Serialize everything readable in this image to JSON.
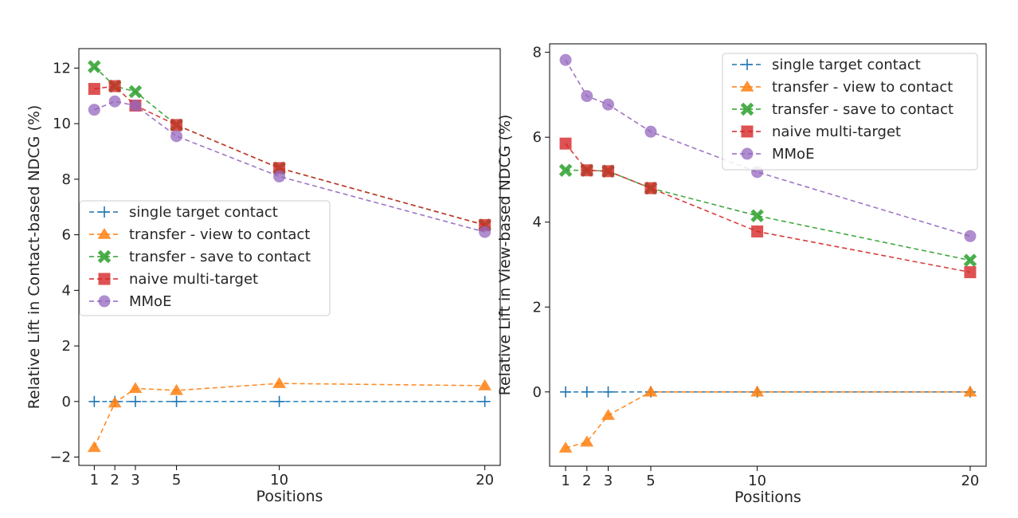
{
  "chart_data": [
    {
      "type": "line",
      "xlabel": "Positions",
      "ylabel": "Relative Lift in Contact-based NDCG (%)",
      "x": [
        1,
        2,
        3,
        5,
        10,
        20
      ],
      "xticks": [
        "1",
        "2",
        "3",
        "5",
        "10",
        "20"
      ],
      "yticks": [
        "−2",
        "0",
        "2",
        "4",
        "6",
        "8",
        "10",
        "12"
      ],
      "xlim": [
        0.25,
        20.75
      ],
      "ylim": [
        -2.3,
        12.7
      ],
      "legend": "center-left",
      "series": [
        {
          "name": "single target contact",
          "color": "#1f77b4",
          "marker": "plus",
          "values": [
            0,
            0,
            0,
            0,
            0,
            0
          ]
        },
        {
          "name": "transfer - view to contact",
          "color": "#ff7f0e",
          "marker": "triangle",
          "values": [
            -1.65,
            -0.05,
            0.47,
            0.4,
            0.65,
            0.57
          ]
        },
        {
          "name": "transfer - save to contact",
          "color": "#2ca02c",
          "marker": "x",
          "values": [
            12.05,
            11.35,
            11.15,
            9.95,
            8.4,
            6.35
          ]
        },
        {
          "name": "naive multi-target",
          "color": "#d62728",
          "marker": "square",
          "values": [
            11.25,
            11.35,
            10.65,
            9.95,
            8.4,
            6.35
          ]
        },
        {
          "name": "MMoE",
          "color": "#9467bd",
          "marker": "circle",
          "values": [
            10.5,
            10.8,
            10.65,
            9.55,
            8.1,
            6.1
          ]
        }
      ]
    },
    {
      "type": "line",
      "xlabel": "Positions",
      "ylabel": "Relative Lift in View-based NDCG (%)",
      "x": [
        1,
        2,
        3,
        5,
        10,
        20
      ],
      "xticks": [
        "1",
        "2",
        "3",
        "5",
        "10",
        "20"
      ],
      "yticks": [
        "0",
        "2",
        "4",
        "6",
        "8"
      ],
      "xlim": [
        0.25,
        20.75
      ],
      "ylim": [
        -1.75,
        8.2
      ],
      "legend": "top-right",
      "series": [
        {
          "name": "single target contact",
          "color": "#1f77b4",
          "marker": "plus",
          "values": [
            0,
            0,
            0,
            0,
            0,
            0
          ]
        },
        {
          "name": "transfer - view to contact",
          "color": "#ff7f0e",
          "marker": "triangle",
          "values": [
            -1.32,
            -1.18,
            -0.55,
            0,
            0,
            0
          ]
        },
        {
          "name": "transfer - save to contact",
          "color": "#2ca02c",
          "marker": "x",
          "values": [
            5.22,
            5.22,
            5.2,
            4.8,
            4.15,
            3.1
          ]
        },
        {
          "name": "naive multi-target",
          "color": "#d62728",
          "marker": "square",
          "values": [
            5.85,
            5.22,
            5.2,
            4.8,
            3.78,
            2.82
          ]
        },
        {
          "name": "MMoE",
          "color": "#9467bd",
          "marker": "circle",
          "values": [
            7.82,
            6.97,
            6.77,
            6.13,
            5.18,
            3.67
          ]
        }
      ]
    }
  ]
}
